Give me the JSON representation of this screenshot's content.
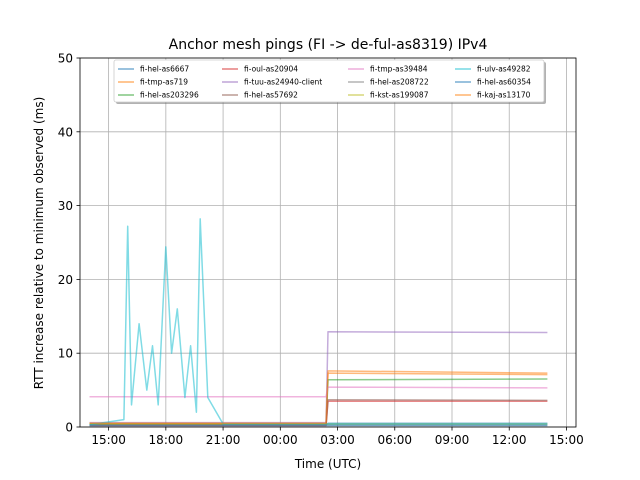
{
  "chart_data": {
    "type": "line",
    "title": "Anchor mesh pings (FI -> de-ful-as8319) IPv4",
    "xlabel": "Time (UTC)",
    "ylabel": "RTT increase relative to minimum observed (ms)",
    "ylim": [
      0,
      50
    ],
    "xlim_hours": [
      13.5,
      39.5
    ],
    "x_ticks": [
      {
        "hour": 15,
        "label": "15:00"
      },
      {
        "hour": 18,
        "label": "18:00"
      },
      {
        "hour": 21,
        "label": "21:00"
      },
      {
        "hour": 24,
        "label": "00:00"
      },
      {
        "hour": 27,
        "label": "03:00"
      },
      {
        "hour": 30,
        "label": "06:00"
      },
      {
        "hour": 33,
        "label": "09:00"
      },
      {
        "hour": 36,
        "label": "12:00"
      },
      {
        "hour": 39,
        "label": "15:00"
      }
    ],
    "y_ticks": [
      0,
      10,
      20,
      30,
      40,
      50
    ],
    "grid": true,
    "legend_location": "top-center",
    "x_unit": "hours since 00:00 UTC of day 1",
    "series": [
      {
        "name": "fi-hel-as6667",
        "color": "#1f77b4",
        "x": [
          14,
          26.4,
          26.5,
          38
        ],
        "values": [
          0.3,
          0.3,
          0.5,
          0.5
        ]
      },
      {
        "name": "fi-tmp-as719",
        "color": "#ff7f0e",
        "x": [
          14,
          26.4,
          26.5,
          38
        ],
        "values": [
          0.5,
          0.5,
          7.3,
          7.1
        ]
      },
      {
        "name": "fi-hel-as203296",
        "color": "#2ca02c",
        "x": [
          14,
          26.4,
          26.5,
          38
        ],
        "values": [
          0.4,
          0.4,
          6.4,
          6.5
        ]
      },
      {
        "name": "fi-oul-as20904",
        "color": "#d62728",
        "x": [
          14,
          26.4,
          26.5,
          38
        ],
        "values": [
          0.2,
          0.2,
          3.5,
          3.5
        ]
      },
      {
        "name": "fi-tuu-as24940-client",
        "color": "#9467bd",
        "x": [
          14,
          26.4,
          26.5,
          38
        ],
        "values": [
          0.6,
          0.6,
          12.9,
          12.8
        ]
      },
      {
        "name": "fi-hel-as57692",
        "color": "#8c564b",
        "x": [
          14,
          26.4,
          26.5,
          38
        ],
        "values": [
          0.3,
          0.3,
          3.7,
          3.6
        ]
      },
      {
        "name": "fi-tmp-as39484",
        "color": "#e377c2",
        "x": [
          14,
          26.4,
          26.5,
          38
        ],
        "values": [
          4.1,
          4.1,
          5.4,
          5.3
        ]
      },
      {
        "name": "fi-hel-as208722",
        "color": "#7f7f7f",
        "x": [
          14,
          38
        ],
        "values": [
          0.3,
          0.3
        ]
      },
      {
        "name": "fi-kst-as199087",
        "color": "#bcbd22",
        "x": [
          14,
          38
        ],
        "values": [
          0.4,
          0.4
        ]
      },
      {
        "name": "fi-ulv-as49282",
        "color": "#17becf",
        "x": [
          14,
          15.8,
          16,
          16.2,
          16.6,
          17.0,
          17.3,
          17.6,
          18.0,
          18.3,
          18.6,
          19.0,
          19.3,
          19.6,
          19.8,
          20.2,
          21,
          38
        ],
        "values": [
          0.3,
          1,
          27.2,
          3,
          14,
          5,
          11,
          3,
          24.4,
          10,
          16,
          4,
          11,
          2,
          28.2,
          4,
          0.4,
          0.4
        ]
      },
      {
        "name": "fi-hel-as60354",
        "color": "#1f77b4",
        "x": [
          14,
          38
        ],
        "values": [
          0.2,
          0.2
        ]
      },
      {
        "name": "fi-kaj-as13170",
        "color": "#ff7f0e",
        "x": [
          14,
          26.4,
          26.5,
          38
        ],
        "values": [
          0.5,
          0.5,
          7.6,
          7.3
        ]
      }
    ]
  }
}
